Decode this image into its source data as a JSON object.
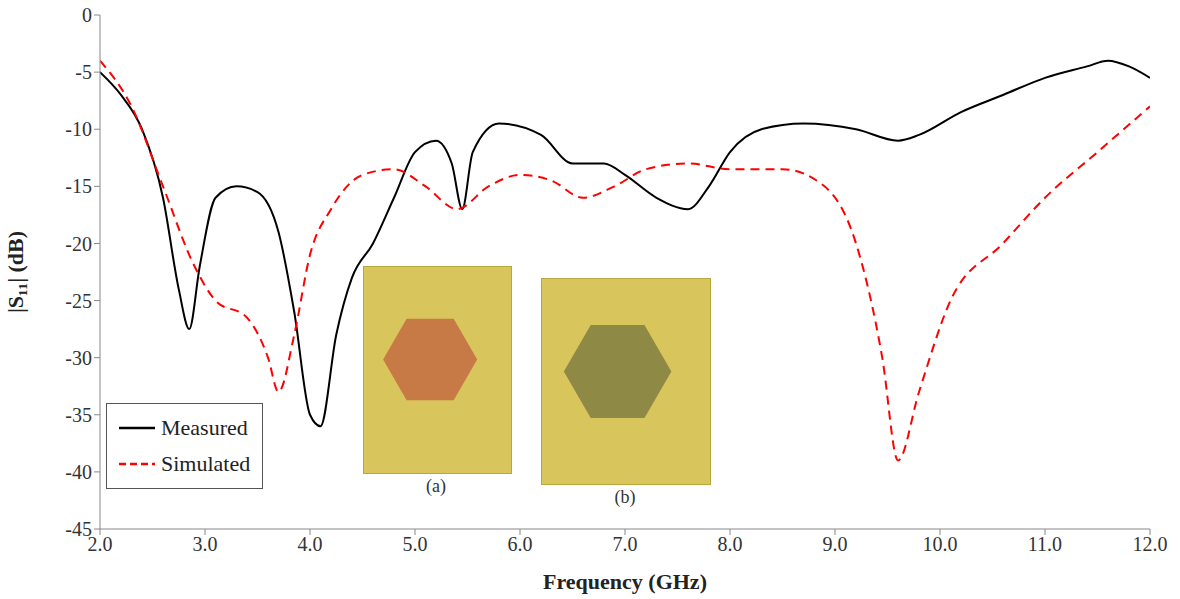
{
  "chart_data": {
    "type": "line",
    "x_label": "Frequency (GHz)",
    "y_label": "|S₁₁| (dB)",
    "xlim": [
      2,
      12
    ],
    "xticks": [
      {
        "value": 2,
        "label": "2.0"
      },
      {
        "value": 3,
        "label": "3.0"
      },
      {
        "value": 4,
        "label": "4.0"
      },
      {
        "value": 5,
        "label": "5.0"
      },
      {
        "value": 6,
        "label": "6.0"
      },
      {
        "value": 7,
        "label": "7.0"
      },
      {
        "value": 8,
        "label": "8.0"
      },
      {
        "value": 9,
        "label": "9.0"
      },
      {
        "value": 10,
        "label": "10.0"
      },
      {
        "value": 11,
        "label": "11.0"
      },
      {
        "value": 12,
        "label": "12.0"
      }
    ],
    "ylim": [
      -45,
      0
    ],
    "yticks": [
      -45,
      -40,
      -35,
      -30,
      -25,
      -20,
      -15,
      -10,
      -5,
      0
    ],
    "grid": false,
    "legend": "lower left",
    "annotations": [
      "(a)",
      "(b)"
    ],
    "series": [
      {
        "name": "Measured",
        "color": "#000000",
        "line_style": "solid",
        "marker": "none",
        "x": [
          2.0,
          2.2,
          2.4,
          2.6,
          2.75,
          2.85,
          2.95,
          3.1,
          3.3,
          3.5,
          3.7,
          3.85,
          4.0,
          4.1,
          4.25,
          4.4,
          4.6,
          4.8,
          5.0,
          5.2,
          5.35,
          5.45,
          5.55,
          5.8,
          6.2,
          6.5,
          6.8,
          7.0,
          7.3,
          7.6,
          7.8,
          8.0,
          8.3,
          8.7,
          9.2,
          9.6,
          9.8,
          10.2,
          10.6,
          11.0,
          11.4,
          11.6,
          11.8,
          12.0
        ],
        "values": [
          -5,
          -7,
          -10,
          -16,
          -24,
          -27.5,
          -22,
          -16,
          -15,
          -15.5,
          -19,
          -26,
          -35,
          -36,
          -28,
          -23,
          -20,
          -16,
          -12,
          -11,
          -13,
          -17,
          -12,
          -9.5,
          -10.5,
          -13,
          -13,
          -14,
          -16,
          -17,
          -15,
          -12,
          -10,
          -9.5,
          -10,
          -11,
          -10.5,
          -8.5,
          -7,
          -5.5,
          -4.5,
          -4,
          -4.5,
          -5.5
        ]
      },
      {
        "name": "Simulated",
        "color": "#ff0000",
        "line_style": "dashed",
        "marker": "none",
        "x": [
          2.0,
          2.3,
          2.6,
          2.9,
          3.1,
          3.4,
          3.6,
          3.7,
          3.85,
          4.0,
          4.2,
          4.5,
          4.8,
          5.1,
          5.4,
          5.7,
          6.0,
          6.3,
          6.6,
          6.9,
          7.2,
          7.6,
          8.0,
          8.5,
          8.9,
          9.2,
          9.45,
          9.6,
          9.8,
          10.1,
          10.6,
          11.0,
          11.5,
          12.0
        ],
        "values": [
          -4,
          -8,
          -15,
          -22,
          -25,
          -26.5,
          -30,
          -33,
          -28,
          -21,
          -17,
          -14,
          -13.5,
          -15,
          -17,
          -15,
          -14,
          -14.5,
          -16,
          -15,
          -13.5,
          -13,
          -13.5,
          -13.5,
          -15,
          -20,
          -30,
          -39,
          -33,
          -25,
          -20,
          -16,
          -12,
          -8
        ]
      }
    ]
  }
}
